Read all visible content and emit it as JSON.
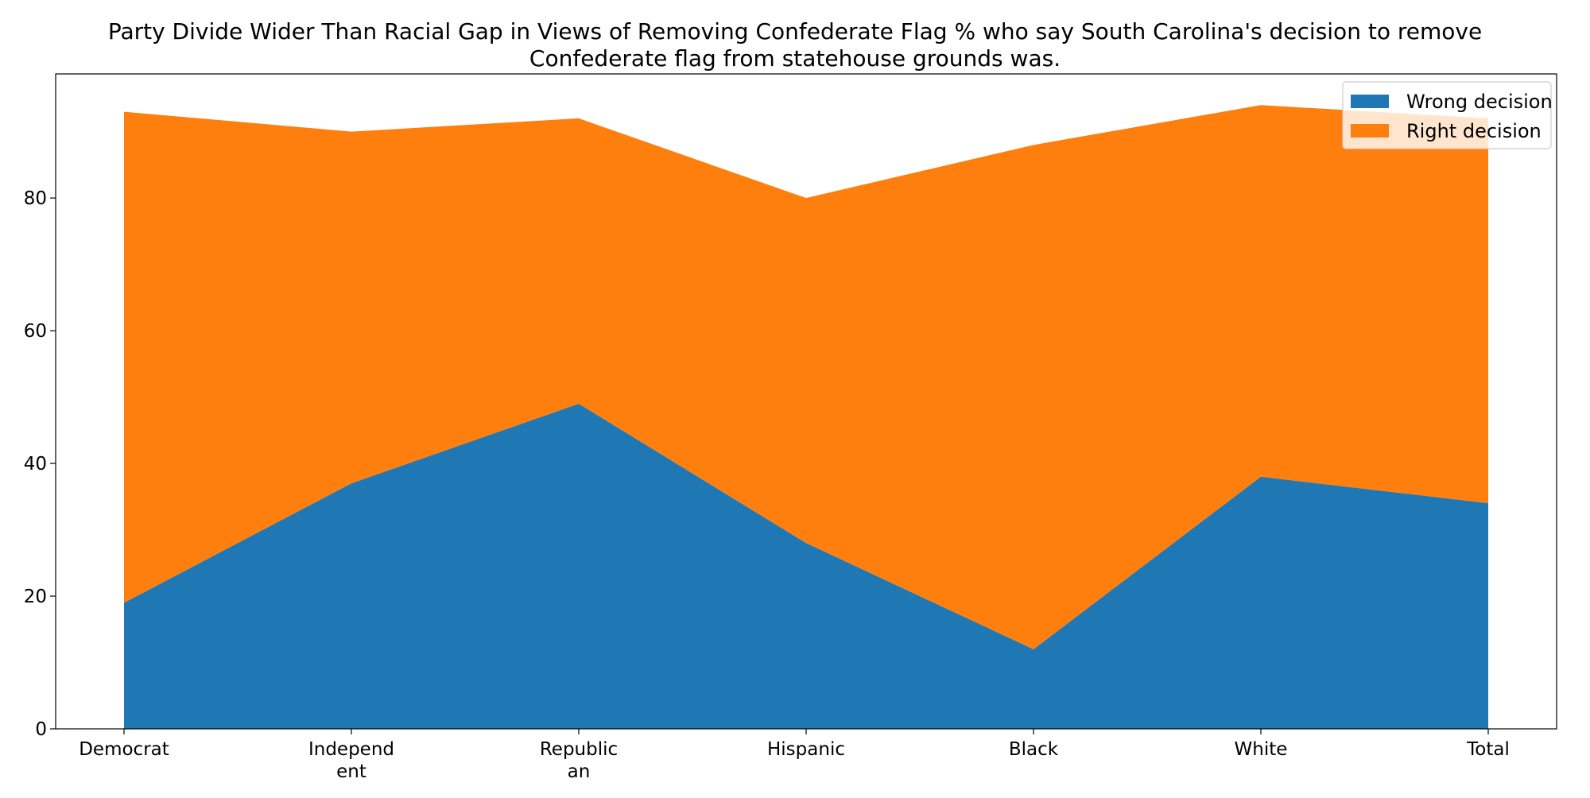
{
  "chart_data": {
    "type": "area",
    "stacked": true,
    "title": "Party Divide Wider Than Racial Gap in Views of Removing Confederate Flag % who say South Carolina's decision to remove Confederate flag from statehouse grounds was.",
    "title_lines": [
      "Party Divide Wider Than Racial Gap in Views of Removing Confederate Flag % who say South Carolina's decision to remove",
      "Confederate flag from statehouse grounds was."
    ],
    "xlabel": "",
    "ylabel": "",
    "categories": [
      "Democrat",
      "Independent",
      "Republican",
      "Hispanic",
      "Black",
      "White",
      "Total"
    ],
    "category_label_lines": [
      [
        "Democrat"
      ],
      [
        "Independ",
        "ent"
      ],
      [
        "Republic",
        "an"
      ],
      [
        "Hispanic"
      ],
      [
        "Black"
      ],
      [
        "White"
      ],
      [
        "Total"
      ]
    ],
    "series": [
      {
        "name": "Wrong decision",
        "values": [
          19,
          37,
          49,
          28,
          12,
          38,
          34
        ],
        "color": "#1f77b4"
      },
      {
        "name": "Right decision",
        "values": [
          74,
          53,
          43,
          52,
          76,
          56,
          58
        ],
        "color": "#ff7f0e"
      }
    ],
    "ylim": [
      0,
      98.7
    ],
    "yticks": [
      0,
      20,
      40,
      60,
      80
    ],
    "grid": false,
    "legend_position": "top-right"
  }
}
